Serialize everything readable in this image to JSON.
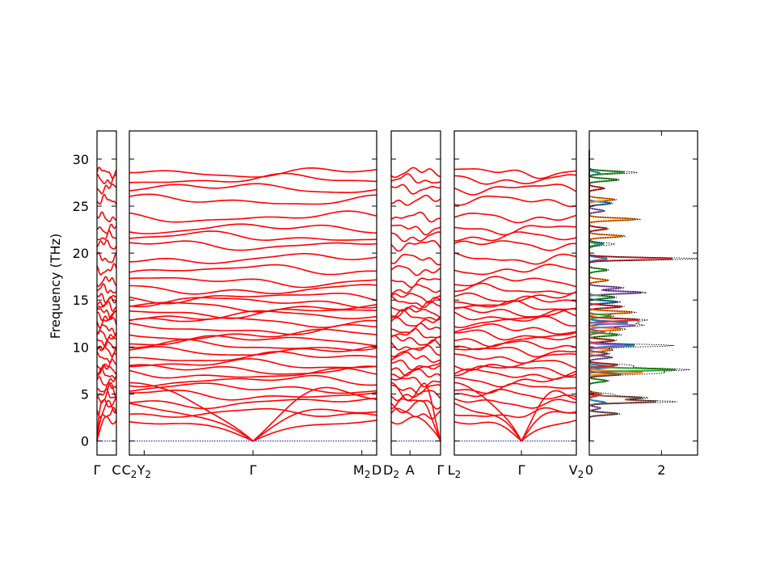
{
  "chart_data": {
    "type": "line",
    "title": "",
    "ylabel": "Frequency (THz)",
    "ylim": [
      -1.5,
      33
    ],
    "yticks": [
      "0",
      "5",
      "10",
      "15",
      "20",
      "25",
      "30"
    ],
    "band_color": "#ff0000",
    "zero_line_color": "#0000cc",
    "band_panels": [
      {
        "xlabels": [
          {
            "x": 0,
            "text": "Γ"
          },
          {
            "x": 1,
            "text": "C"
          }
        ]
      },
      {
        "xlabels": [
          {
            "x": 0,
            "text": "C",
            "sub": "2"
          },
          {
            "x": 0.06,
            "text": "Y",
            "sub": "2"
          },
          {
            "x": 0.5,
            "text": "Γ"
          },
          {
            "x": 0.94,
            "text": "M",
            "sub": "2"
          },
          {
            "x": 1,
            "text": "D"
          }
        ]
      },
      {
        "xlabels": [
          {
            "x": 0,
            "text": "D",
            "sub": "2"
          },
          {
            "x": 0.38,
            "text": "A"
          },
          {
            "x": 1,
            "text": "Γ"
          }
        ]
      },
      {
        "xlabels": [
          {
            "x": 0,
            "text": "L",
            "sub": "2"
          },
          {
            "x": 0.55,
            "text": "Γ"
          },
          {
            "x": 1,
            "text": "V",
            "sub": "2"
          }
        ]
      }
    ],
    "band_levels": [
      28.6,
      27.8,
      26.9,
      25.6,
      23.8,
      22.6,
      21.7,
      20.9,
      19.4,
      18.2,
      17.0,
      16.1,
      15.3,
      14.8,
      14.3,
      13.7,
      13.3,
      12.7,
      11.9,
      11.3,
      10.7,
      10.1,
      9.6,
      8.9,
      8.1,
      7.6,
      7.1,
      6.4,
      5.6,
      4.9,
      4.1,
      2.9
    ],
    "acoustic_max": [
      6.2,
      4.3,
      2.6
    ],
    "dos": {
      "xlim": [
        0,
        3
      ],
      "xticks": [
        "0",
        "2"
      ],
      "series": [
        {
          "color": "#1f77b4",
          "peaks": [
            [
              4.1,
              0.45
            ],
            [
              7.9,
              0.7
            ],
            [
              10.2,
              1.3
            ],
            [
              12.6,
              1.1
            ],
            [
              14.8,
              0.8
            ],
            [
              19.4,
              0.5
            ],
            [
              21.0,
              0.4
            ],
            [
              25.3,
              0.6
            ],
            [
              28.5,
              0.3
            ]
          ]
        },
        {
          "color": "#ff7f0e",
          "peaks": [
            [
              5.0,
              0.35
            ],
            [
              7.3,
              1.5
            ],
            [
              9.7,
              0.6
            ],
            [
              11.9,
              0.9
            ],
            [
              13.7,
              1.2
            ],
            [
              17.1,
              0.5
            ],
            [
              21.8,
              0.95
            ],
            [
              23.6,
              1.3
            ],
            [
              25.7,
              0.7
            ]
          ]
        },
        {
          "color": "#2ca02c",
          "peaks": [
            [
              6.4,
              0.5
            ],
            [
              7.6,
              2.4
            ],
            [
              11.3,
              0.8
            ],
            [
              13.3,
              0.6
            ],
            [
              15.3,
              0.7
            ],
            [
              18.2,
              0.5
            ],
            [
              20.9,
              0.3
            ],
            [
              27.8,
              0.8
            ],
            [
              28.6,
              1.0
            ]
          ]
        },
        {
          "color": "#d62728",
          "peaks": [
            [
              4.9,
              0.3
            ],
            [
              8.1,
              0.8
            ],
            [
              10.7,
              0.7
            ],
            [
              12.9,
              1.4
            ],
            [
              14.3,
              0.9
            ],
            [
              19.4,
              2.4
            ],
            [
              22.6,
              0.5
            ],
            [
              26.9,
              0.4
            ]
          ]
        },
        {
          "color": "#9467bd",
          "peaks": [
            [
              3.5,
              0.3
            ],
            [
              8.9,
              0.6
            ],
            [
              10.1,
              1.0
            ],
            [
              12.3,
              1.3
            ],
            [
              15.8,
              1.5
            ],
            [
              16.3,
              0.9
            ],
            [
              24.5,
              0.4
            ]
          ]
        },
        {
          "color": "#8c564b",
          "peaks": [
            [
              2.9,
              0.8
            ],
            [
              4.2,
              1.9
            ],
            [
              4.6,
              1.5
            ],
            [
              7.1,
              0.9
            ],
            [
              9.3,
              0.5
            ],
            [
              11.6,
              0.4
            ]
          ]
        }
      ],
      "total_color": "#000000"
    }
  }
}
